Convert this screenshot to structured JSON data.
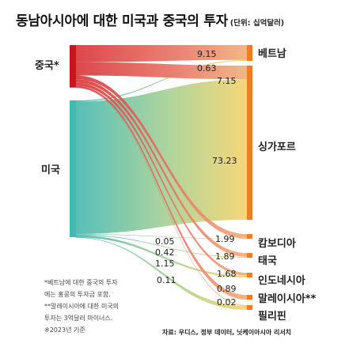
{
  "title": "동남아시아에 대한 미국과 중국의 투자",
  "unit": "(단위: 십억달러)",
  "notes": [
    "*베트남에 대한 중국의 투자",
    "에는 홍콩의 투자금 포함.",
    "**말레이시아에 대한 미국의",
    "투자는 3억달러 마이너스.",
    "※2023년 기준"
  ],
  "source": "자료: 우디스, 정부 데이터, 닛케이아시아 리서치",
  "colors": {
    "china": "#c8161d",
    "usa": "#45b8b0",
    "target": "#f47b20",
    "us_gradient_end": "#f6d26a",
    "cn_gradient_end": "#f0a070"
  },
  "chart_data": {
    "type": "sankey",
    "sources": [
      "중국*",
      "미국"
    ],
    "targets": [
      "베트남",
      "싱가포르",
      "캄보디아",
      "태국",
      "인도네시아",
      "말레이시아**",
      "필리핀"
    ],
    "flows": [
      {
        "source": "중국*",
        "target": "베트남",
        "value": 9.15,
        "label": "9.15"
      },
      {
        "source": "미국",
        "target": "베트남",
        "value": 0.63,
        "label": "0.63"
      },
      {
        "source": "중국*",
        "target": "싱가포르",
        "value": 7.15,
        "label": "7.15"
      },
      {
        "source": "미국",
        "target": "싱가포르",
        "value": 73.23,
        "label": "73.23"
      },
      {
        "source": "중국*",
        "target": "캄보디아",
        "value": 1.99,
        "label": "1.99"
      },
      {
        "source": "미국",
        "target": "캄보디아",
        "value": 0.05,
        "label": "0.05"
      },
      {
        "source": "중국*",
        "target": "태국",
        "value": 1.89,
        "label": "1.89"
      },
      {
        "source": "미국",
        "target": "태국",
        "value": 0.42,
        "label": "0.42"
      },
      {
        "source": "중국*",
        "target": "인도네시아",
        "value": 1.68,
        "label": "1.68"
      },
      {
        "source": "미국",
        "target": "인도네시아",
        "value": 1.15,
        "label": "1.15"
      },
      {
        "source": "중국*",
        "target": "말레이시아**",
        "value": 0.89,
        "label": "0.89"
      },
      {
        "source": "중국*",
        "target": "필리핀",
        "value": 0.02,
        "label": "0.02"
      },
      {
        "source": "미국",
        "target": "필리핀",
        "value": 0.11,
        "label": "0.11"
      }
    ]
  }
}
